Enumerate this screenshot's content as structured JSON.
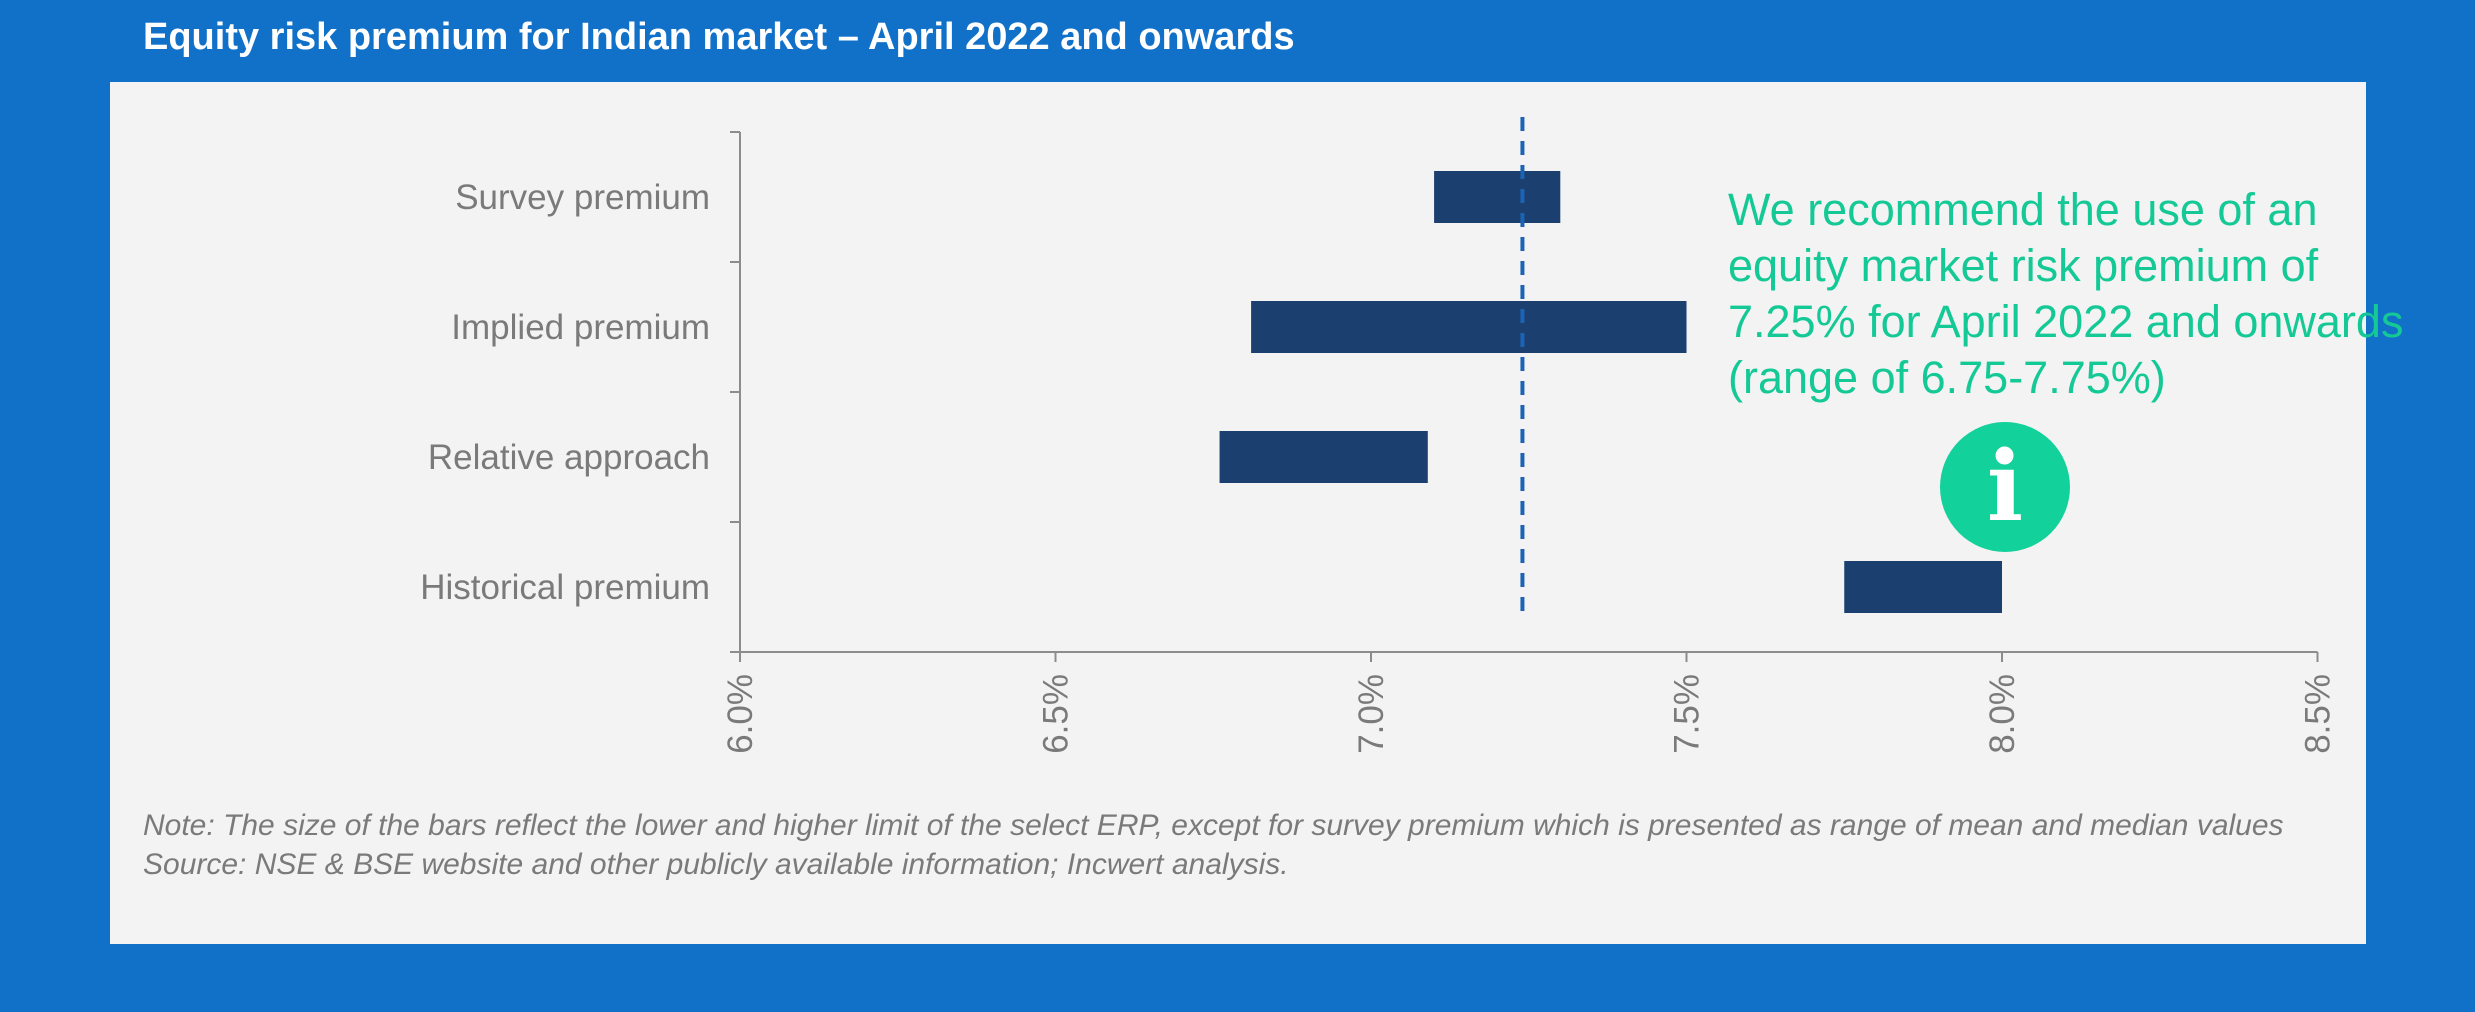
{
  "title": "Equity risk premium for Indian market – April 2022 and onwards",
  "chart_data": {
    "type": "bar",
    "orientation": "horizontal-range",
    "categories": [
      "Survey premium",
      "Implied premium",
      "Relative approach",
      "Historical premium"
    ],
    "ranges": [
      {
        "category": "Survey premium",
        "low": 7.1,
        "high": 7.3
      },
      {
        "category": "Implied premium",
        "low": 6.81,
        "high": 7.5
      },
      {
        "category": "Relative approach",
        "low": 6.76,
        "high": 7.09
      },
      {
        "category": "Historical premium",
        "low": 7.75,
        "high": 8.0
      }
    ],
    "reference_line": {
      "value": 7.24,
      "style": "dashed"
    },
    "xlim": [
      6.0,
      8.5
    ],
    "xticks": [
      "6.0%",
      "6.5%",
      "7.0%",
      "7.5%",
      "8.0%",
      "8.5%"
    ],
    "bar_color": "#1b3f6e",
    "reference_line_color": "#1a63b5",
    "grid": false
  },
  "callout": {
    "text": "We recommend the use of an equity market risk premium of 7.25% for April 2022 and onwards (range of 6.75-7.75%)",
    "color": "#14c995",
    "icon": "info-icon"
  },
  "notes": {
    "note": "Note: The size of the bars reflect the lower and higher limit of the select ERP, except for survey premium which is presented as range of mean and median values",
    "source": "Source: NSE & BSE website and other publicly available information; Incwert analysis."
  },
  "colors": {
    "background": "#1171c8",
    "panel": "#f3f3f3",
    "text_muted": "#7a7a7a"
  }
}
